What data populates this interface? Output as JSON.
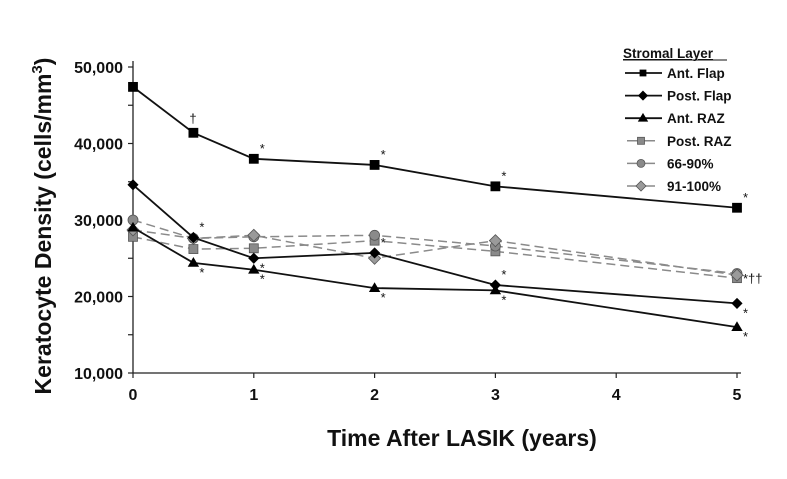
{
  "chart_data": {
    "type": "line",
    "title": "",
    "xlabel": "Time After LASIK (years)",
    "ylabel": "Keratocyte Density (cells/mm",
    "ylabel_superscript": "3",
    "ylabel_suffix": ")",
    "xlim": [
      0,
      5
    ],
    "ylim": [
      10000,
      50000
    ],
    "x_ticks": [
      0,
      1,
      2,
      3,
      4,
      5
    ],
    "x_tick_labels": [
      "0",
      "1",
      "2",
      "3",
      "4",
      "5"
    ],
    "y_ticks": [
      10000,
      20000,
      30000,
      40000,
      50000
    ],
    "y_tick_labels": [
      "10,000",
      "20,000",
      "30,000",
      "40,000",
      "50,000"
    ],
    "grid": false,
    "legend": {
      "title": "Stromal Layer",
      "placement": "top-right"
    },
    "x": [
      0,
      0.5,
      1,
      2,
      3,
      5
    ],
    "series": [
      {
        "name": "Ant. Flap",
        "marker": "square",
        "color": "#000000",
        "dashed": false,
        "values": [
          47400,
          41400,
          38000,
          37200,
          34400,
          31600
        ]
      },
      {
        "name": "Post. Flap",
        "marker": "diamond",
        "color": "#000000",
        "dashed": false,
        "values": [
          34600,
          27700,
          25000,
          25700,
          21500,
          19100
        ]
      },
      {
        "name": "Ant. RAZ",
        "marker": "triangle",
        "color": "#000000",
        "dashed": false,
        "values": [
          29000,
          24400,
          23500,
          21100,
          20800,
          16000
        ]
      },
      {
        "name": "Post. RAZ",
        "marker": "square",
        "color": "#8a8a8a",
        "dashed": true,
        "values": [
          27800,
          26200,
          26300,
          27300,
          25900,
          22400
        ]
      },
      {
        "name": "66-90%",
        "marker": "circle",
        "color": "#8a8a8a",
        "dashed": true,
        "values": [
          30000,
          27600,
          27800,
          28000,
          26600,
          23000
        ]
      },
      {
        "name": "91-100%",
        "marker": "diamond",
        "color": "#9a9a9a",
        "dashed": true,
        "values": [
          28700,
          27600,
          28000,
          25000,
          27300,
          22800
        ]
      }
    ],
    "annotations": [
      {
        "series": "Ant. Flap",
        "x": 0.5,
        "text": "†",
        "pos": "above"
      },
      {
        "series": "Ant. Flap",
        "x": 1,
        "text": "*",
        "pos": "above-right"
      },
      {
        "series": "Ant. Flap",
        "x": 2,
        "text": "*",
        "pos": "above-right"
      },
      {
        "series": "Ant. Flap",
        "x": 3,
        "text": "*",
        "pos": "above-right"
      },
      {
        "series": "Ant. Flap",
        "x": 5,
        "text": "*",
        "pos": "above-right"
      },
      {
        "series": "Post. Flap",
        "x": 0.5,
        "text": "*",
        "pos": "above-right"
      },
      {
        "series": "Post. Flap",
        "x": 1,
        "text": "*",
        "pos": "below-right"
      },
      {
        "series": "Post. Flap",
        "x": 2,
        "text": "*",
        "pos": "above-right"
      },
      {
        "series": "Post. Flap",
        "x": 3,
        "text": "*",
        "pos": "above-right"
      },
      {
        "series": "Post. Flap",
        "x": 5,
        "text": "*",
        "pos": "below-right"
      },
      {
        "series": "Ant. RAZ",
        "x": 0.5,
        "text": "*",
        "pos": "below-right"
      },
      {
        "series": "Ant. RAZ",
        "x": 1,
        "text": "*",
        "pos": "below-right"
      },
      {
        "series": "Ant. RAZ",
        "x": 2,
        "text": "*",
        "pos": "below-right"
      },
      {
        "series": "Ant. RAZ",
        "x": 3,
        "text": "*",
        "pos": "below-right"
      },
      {
        "series": "Ant. RAZ",
        "x": 5,
        "text": "*",
        "pos": "below-right"
      },
      {
        "series": "Post. RAZ",
        "x": 5,
        "text": "*††",
        "pos": "right"
      }
    ]
  }
}
